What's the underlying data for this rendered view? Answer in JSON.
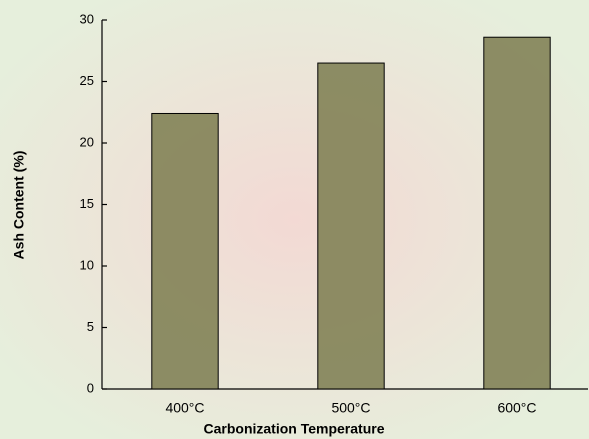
{
  "chart_data": {
    "type": "bar",
    "x_label": "Carbonization Temperature",
    "y_label": "Ash Content (%)",
    "categories": [
      "400°C",
      "500°C",
      "600°C"
    ],
    "values": [
      22.4,
      26.5,
      28.6
    ],
    "color": "#828257",
    "ylim": [
      0,
      30
    ],
    "yticks": [
      0,
      5,
      10,
      15,
      20,
      25,
      30
    ],
    "grid": false
  }
}
